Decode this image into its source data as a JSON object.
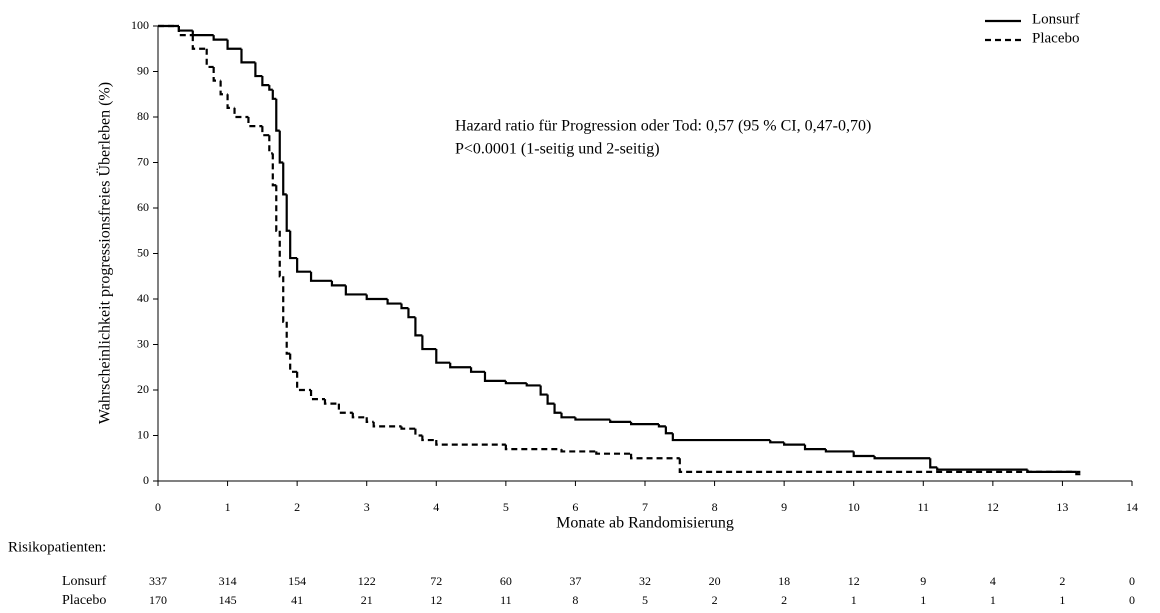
{
  "chart_data": {
    "type": "line",
    "step": true,
    "xlabel": "Monate ab Randomisierung",
    "ylabel": "Wahrscheinlichkeit progressionsfreies Überleben (%)",
    "annotations": [
      "Hazard ratio für Progression oder Tod: 0,57 (95 % CI, 0,47-0,70)",
      "P<0.0001 (1-seitig und 2-seitig)"
    ],
    "xlim": [
      0,
      14
    ],
    "ylim": [
      0,
      100
    ],
    "xticks": [
      0,
      1,
      2,
      3,
      4,
      5,
      6,
      7,
      8,
      9,
      10,
      11,
      12,
      13,
      14
    ],
    "yticks": [
      0,
      10,
      20,
      30,
      40,
      50,
      60,
      70,
      80,
      90,
      100
    ],
    "legend": "upper right",
    "series": [
      {
        "name": "Lonsurf",
        "color": "#000000",
        "dash": "solid",
        "x": [
          0,
          0.3,
          0.5,
          0.8,
          1.0,
          1.2,
          1.4,
          1.5,
          1.6,
          1.65,
          1.7,
          1.75,
          1.8,
          1.85,
          1.9,
          2.0,
          2.2,
          2.5,
          2.7,
          3.0,
          3.3,
          3.5,
          3.6,
          3.7,
          3.8,
          4.0,
          4.2,
          4.5,
          4.7,
          5.0,
          5.3,
          5.5,
          5.6,
          5.7,
          5.8,
          6.0,
          6.5,
          6.8,
          7.2,
          7.3,
          7.4,
          8.8,
          9.0,
          9.3,
          9.6,
          10.0,
          10.3,
          11.1,
          11.2,
          12.5,
          13.2
        ],
        "values": [
          100,
          99,
          98,
          97,
          95,
          92,
          89,
          87,
          86,
          84,
          77,
          70,
          63,
          55,
          49,
          46,
          44,
          43,
          41,
          40,
          39,
          38,
          36,
          32,
          29,
          26,
          25,
          24,
          22,
          21.5,
          21,
          19,
          17,
          15,
          14,
          13.5,
          13,
          12.5,
          12,
          10.5,
          9,
          8.5,
          8,
          7,
          6.5,
          5.5,
          5,
          3,
          2.5,
          2,
          1.5
        ]
      },
      {
        "name": "Placebo",
        "color": "#000000",
        "dash": "dashed",
        "x": [
          0,
          0.3,
          0.5,
          0.7,
          0.8,
          0.9,
          1.0,
          1.1,
          1.3,
          1.5,
          1.6,
          1.65,
          1.7,
          1.75,
          1.8,
          1.85,
          1.9,
          2.0,
          2.2,
          2.4,
          2.6,
          2.8,
          3.0,
          3.1,
          3.5,
          3.7,
          3.8,
          4.0,
          5.0,
          5.8,
          6.3,
          6.8,
          7.5,
          13.2
        ],
        "values": [
          100,
          98,
          95,
          91,
          88,
          85,
          82,
          80,
          78,
          76,
          72,
          65,
          55,
          45,
          35,
          28,
          24,
          20,
          18,
          17,
          15,
          14,
          13,
          12,
          11.5,
          10,
          9,
          8,
          7,
          6.5,
          6,
          5,
          2,
          2
        ]
      }
    ],
    "risk_table": {
      "title": "Risikopatienten:",
      "rows": [
        {
          "name": "Lonsurf",
          "values": [
            337,
            314,
            154,
            122,
            72,
            60,
            37,
            32,
            20,
            18,
            12,
            9,
            4,
            2,
            0
          ]
        },
        {
          "name": "Placebo",
          "values": [
            170,
            145,
            41,
            21,
            12,
            11,
            8,
            5,
            2,
            2,
            1,
            1,
            1,
            1,
            0
          ]
        }
      ]
    }
  }
}
